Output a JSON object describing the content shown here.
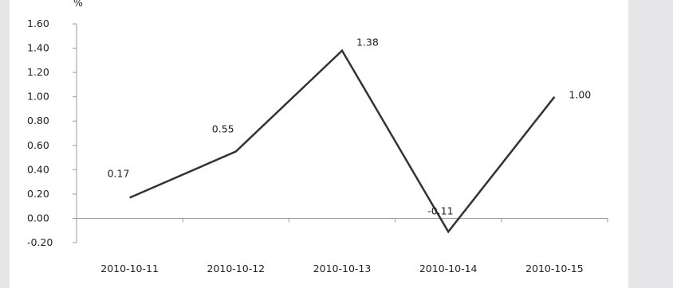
{
  "chart_data": {
    "type": "line",
    "title": "",
    "xlabel": "",
    "ylabel": "%",
    "categories": [
      "2010-10-11",
      "2010-10-12",
      "2010-10-13",
      "2010-10-14",
      "2010-10-15"
    ],
    "series": [
      {
        "values": [
          0.17,
          0.55,
          1.38,
          -0.11,
          1.0
        ]
      }
    ],
    "data_labels": [
      "0.17",
      "0.55",
      "1.38",
      "-0.11",
      "1.00"
    ],
    "ylim": [
      -0.2,
      1.6
    ],
    "yticks": [
      -0.2,
      0.0,
      0.2,
      0.4,
      0.6,
      0.8,
      1.0,
      1.2,
      1.4,
      1.6
    ],
    "ytick_labels": [
      "-0.20",
      "0.00",
      "0.20",
      "0.40",
      "0.60",
      "0.80",
      "1.00",
      "1.20",
      "1.40",
      "1.60"
    ],
    "grid": false,
    "legend": "none",
    "line_color": "#333333"
  }
}
